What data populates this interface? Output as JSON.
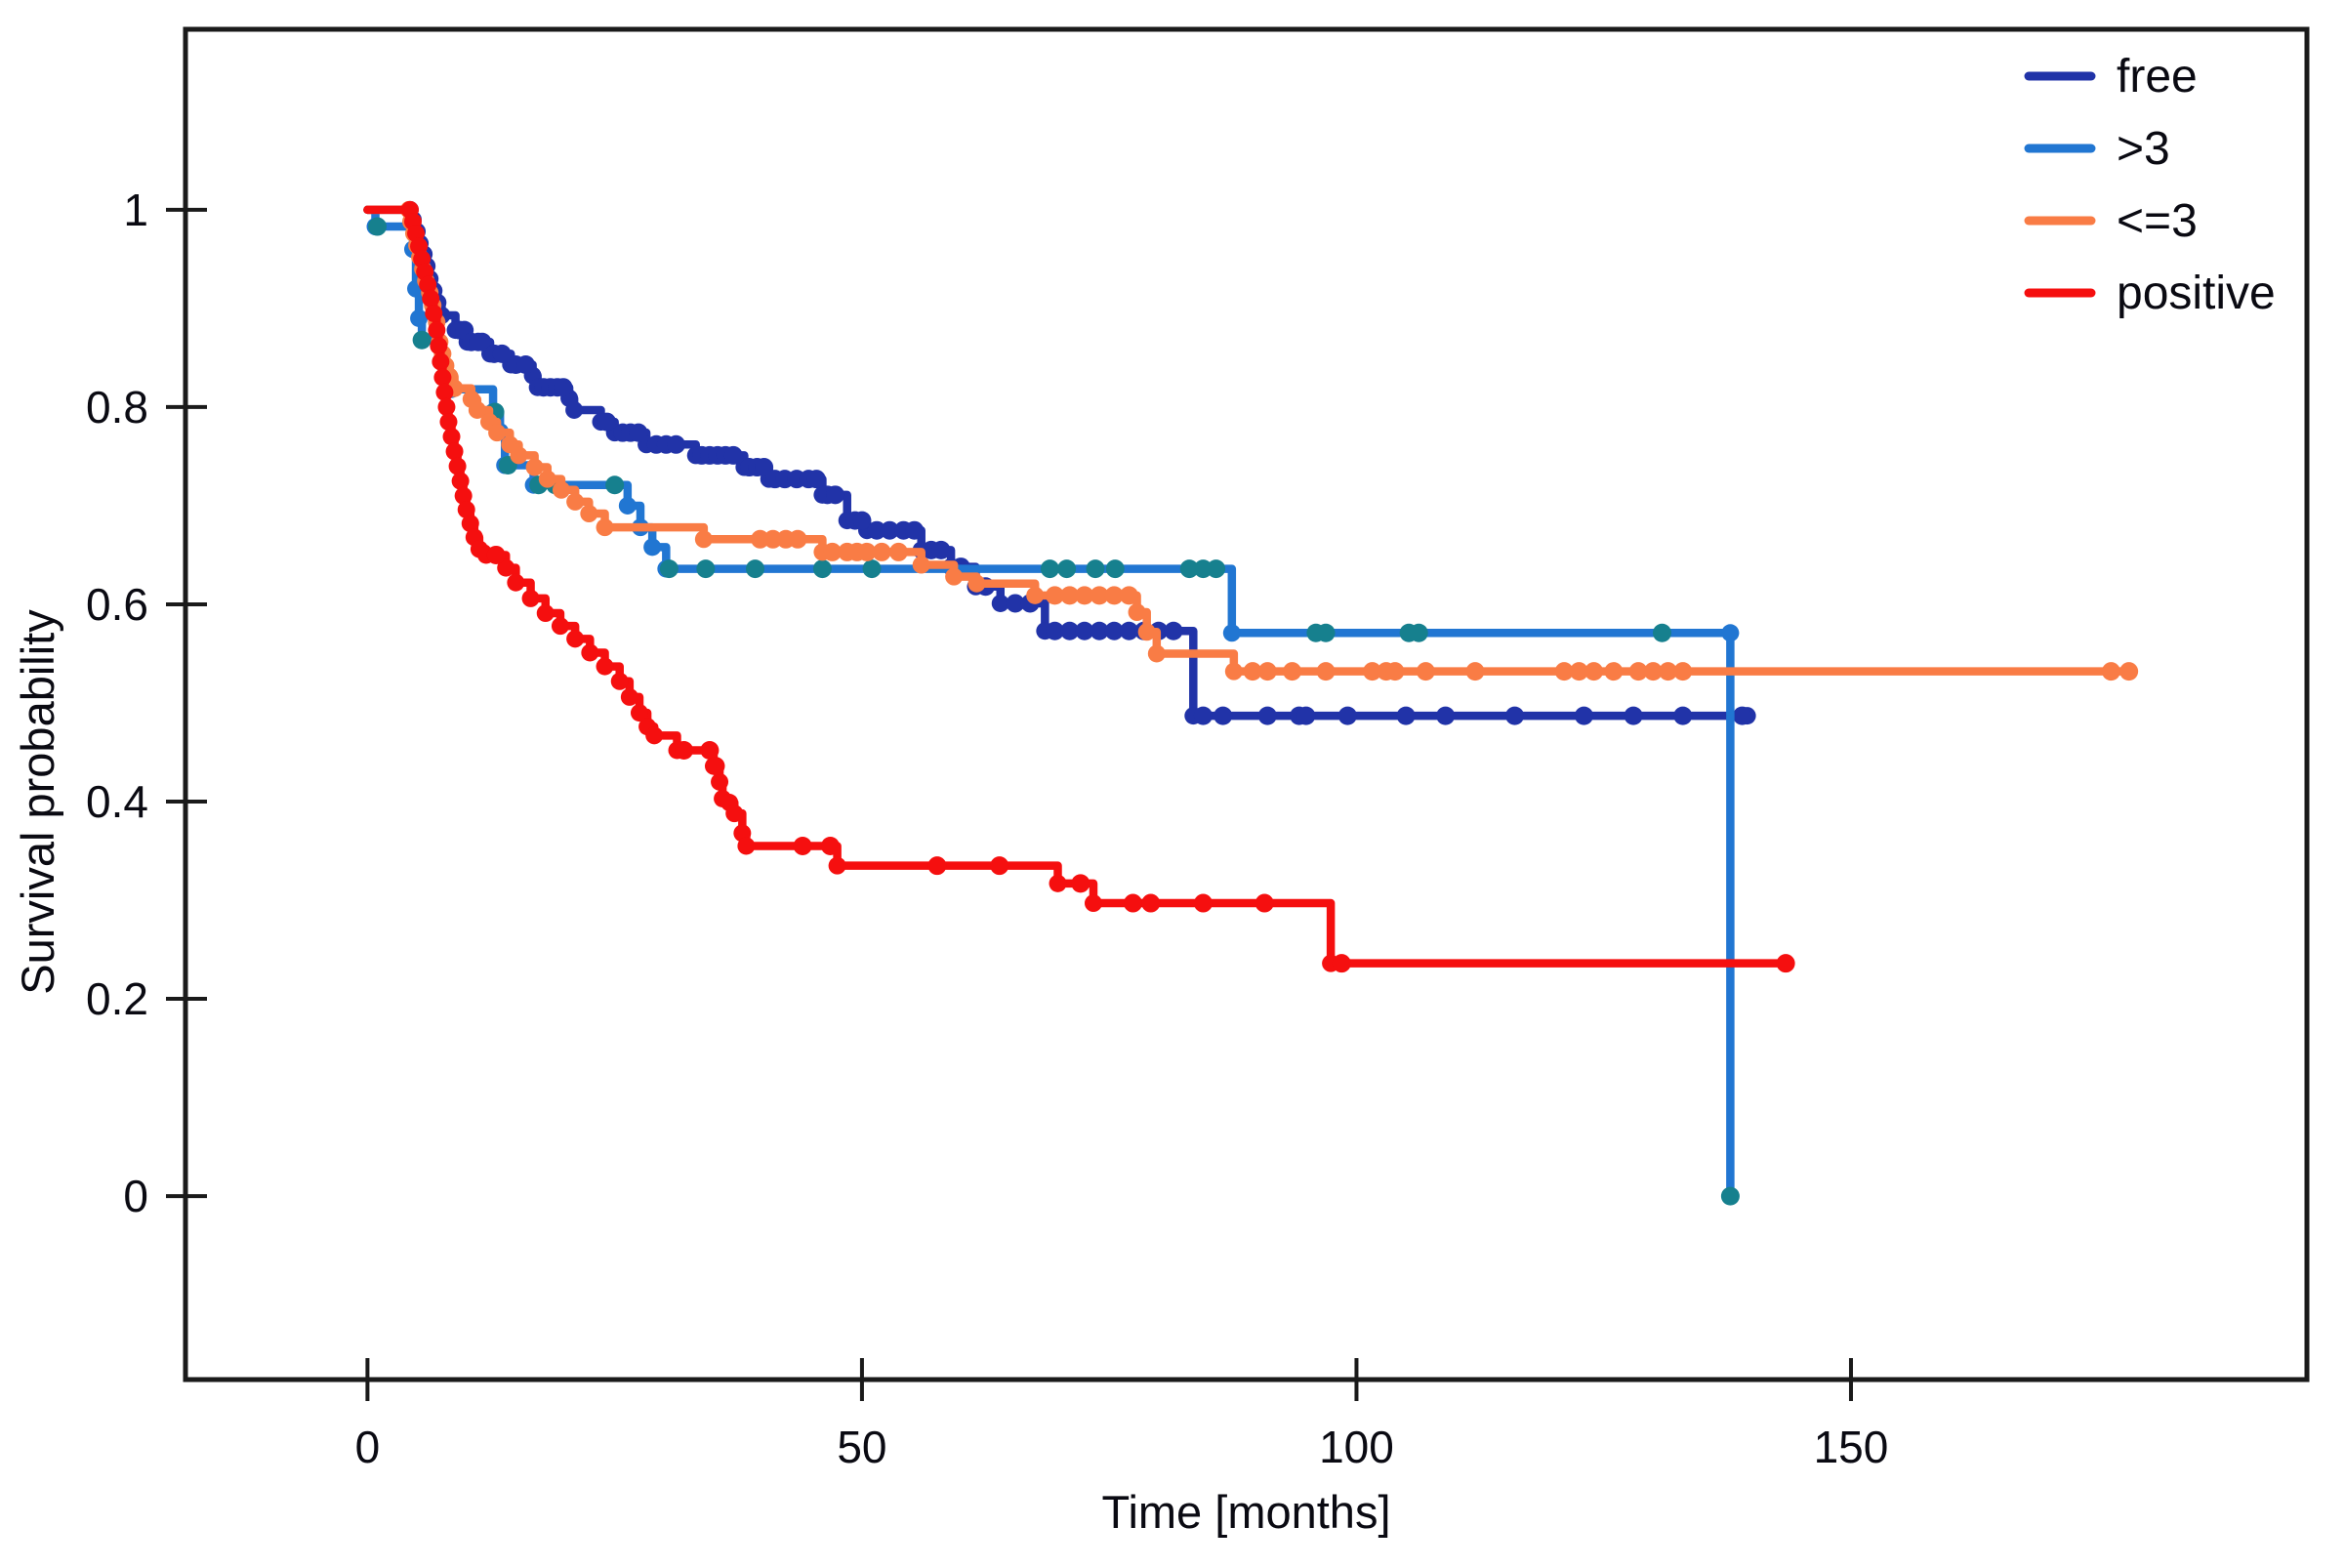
{
  "figure": {
    "kind": "kaplan-meier-survival-plot",
    "background": "#ffffff",
    "axis_color": "#1a1a1a",
    "text_color": "#0a0a12"
  },
  "chart_data": {
    "type": "line",
    "subtype": "step-survival",
    "title": "",
    "xlabel": "Time [months]",
    "ylabel": "Survival probability",
    "xlim": [
      -18.4,
      196.1
    ],
    "ylim": [
      -0.186,
      1.183
    ],
    "xticks": [
      0,
      50,
      100,
      150
    ],
    "xtick_labels": [
      "0",
      "50",
      "100",
      "150"
    ],
    "yticks": [
      1,
      0.8,
      0.6,
      0.4,
      0.2,
      0
    ],
    "ytick_labels": [
      "1",
      "0.8",
      "0.6",
      "0.4",
      "0.2",
      "0"
    ],
    "grid": false,
    "legend_position": "top-right",
    "series": [
      {
        "name": "free",
        "color": "#2133a8",
        "censor_color": "#2133a8",
        "steps": [
          [
            0,
            1
          ],
          [
            4.3,
            1
          ],
          [
            4.6,
            0.99
          ],
          [
            5,
            0.978
          ],
          [
            5.3,
            0.966
          ],
          [
            5.7,
            0.955
          ],
          [
            6,
            0.943
          ],
          [
            6.3,
            0.93
          ],
          [
            6.7,
            0.918
          ],
          [
            7.1,
            0.906
          ],
          [
            7.5,
            0.893
          ],
          [
            8.9,
            0.878
          ],
          [
            10.1,
            0.866
          ],
          [
            12.4,
            0.854
          ],
          [
            14.5,
            0.843
          ],
          [
            16.7,
            0.832
          ],
          [
            17.2,
            0.82
          ],
          [
            20.4,
            0.809
          ],
          [
            20.9,
            0.797
          ],
          [
            23.6,
            0.785
          ],
          [
            25,
            0.774
          ],
          [
            28.2,
            0.762
          ],
          [
            33.2,
            0.751
          ],
          [
            38.1,
            0.739
          ],
          [
            40.6,
            0.727
          ],
          [
            46,
            0.711
          ],
          [
            48.5,
            0.685
          ],
          [
            50.5,
            0.675
          ],
          [
            56,
            0.655
          ],
          [
            59,
            0.638
          ],
          [
            61.5,
            0.618
          ],
          [
            64,
            0.601
          ],
          [
            68.5,
            0.573
          ],
          [
            83.5,
            0.487
          ],
          [
            139.5,
            0.487
          ]
        ],
        "censors": [
          [
            9.3,
            0.878
          ],
          [
            9.8,
            0.878
          ],
          [
            10.5,
            0.866
          ],
          [
            11.2,
            0.866
          ],
          [
            11.6,
            0.866
          ],
          [
            12.8,
            0.854
          ],
          [
            13.6,
            0.854
          ],
          [
            15,
            0.843
          ],
          [
            16,
            0.843
          ],
          [
            17.8,
            0.82
          ],
          [
            18.5,
            0.82
          ],
          [
            19.2,
            0.82
          ],
          [
            19.8,
            0.82
          ],
          [
            24.2,
            0.785
          ],
          [
            25.8,
            0.774
          ],
          [
            26.6,
            0.774
          ],
          [
            27.4,
            0.774
          ],
          [
            29.2,
            0.762
          ],
          [
            30.2,
            0.762
          ],
          [
            31.2,
            0.762
          ],
          [
            33.8,
            0.751
          ],
          [
            34.6,
            0.751
          ],
          [
            35.4,
            0.751
          ],
          [
            36.2,
            0.751
          ],
          [
            37,
            0.751
          ],
          [
            38.6,
            0.739
          ],
          [
            39.4,
            0.739
          ],
          [
            40.1,
            0.739
          ],
          [
            41.2,
            0.727
          ],
          [
            42.2,
            0.727
          ],
          [
            43.4,
            0.727
          ],
          [
            44.6,
            0.727
          ],
          [
            45.4,
            0.727
          ],
          [
            46.5,
            0.711
          ],
          [
            47.3,
            0.711
          ],
          [
            49.3,
            0.685
          ],
          [
            50,
            0.685
          ],
          [
            51.5,
            0.675
          ],
          [
            52.8,
            0.675
          ],
          [
            54.2,
            0.675
          ],
          [
            55.3,
            0.675
          ],
          [
            57,
            0.655
          ],
          [
            58,
            0.655
          ],
          [
            60,
            0.638
          ],
          [
            62.5,
            0.618
          ],
          [
            65.5,
            0.601
          ],
          [
            67,
            0.601
          ],
          [
            69.5,
            0.573
          ],
          [
            71,
            0.573
          ],
          [
            72.5,
            0.573
          ],
          [
            74,
            0.573
          ],
          [
            75.5,
            0.573
          ],
          [
            77,
            0.573
          ],
          [
            78.5,
            0.573
          ],
          [
            80,
            0.573
          ],
          [
            81.5,
            0.573
          ],
          [
            84.5,
            0.487
          ],
          [
            86.5,
            0.487
          ],
          [
            91,
            0.487
          ],
          [
            94.2,
            0.487
          ],
          [
            94.9,
            0.487
          ],
          [
            99.1,
            0.487
          ],
          [
            105,
            0.487
          ],
          [
            109,
            0.487
          ],
          [
            116,
            0.487
          ],
          [
            123,
            0.487
          ],
          [
            128,
            0.487
          ],
          [
            133,
            0.487
          ],
          [
            139,
            0.487
          ]
        ]
      },
      {
        "name": ">3",
        "color": "#2176d2",
        "censor_color": "#16808e",
        "steps": [
          [
            0,
            1
          ],
          [
            0.8,
            0.983
          ],
          [
            4.6,
            0.96
          ],
          [
            4.9,
            0.92
          ],
          [
            5.2,
            0.89
          ],
          [
            5.5,
            0.868
          ],
          [
            7.6,
            0.845
          ],
          [
            8.1,
            0.83
          ],
          [
            8.5,
            0.818
          ],
          [
            12.7,
            0.795
          ],
          [
            13.4,
            0.775
          ],
          [
            13.9,
            0.741
          ],
          [
            16.8,
            0.721
          ],
          [
            26.3,
            0.7
          ],
          [
            27.6,
            0.678
          ],
          [
            28.8,
            0.658
          ],
          [
            30.2,
            0.636
          ],
          [
            87.4,
            0.571
          ],
          [
            137.8,
            0.571
          ],
          [
            137.8,
            0
          ]
        ],
        "censors": [
          [
            1,
            0.983
          ],
          [
            5.5,
            0.868
          ],
          [
            12.9,
            0.795
          ],
          [
            14.2,
            0.741
          ],
          [
            17.3,
            0.721
          ],
          [
            19,
            0.721
          ],
          [
            25,
            0.721
          ],
          [
            30.5,
            0.636
          ],
          [
            34.2,
            0.636
          ],
          [
            39.2,
            0.636
          ],
          [
            46,
            0.636
          ],
          [
            51,
            0.636
          ],
          [
            69,
            0.636
          ],
          [
            70.7,
            0.636
          ],
          [
            73.6,
            0.636
          ],
          [
            75.6,
            0.636
          ],
          [
            83.1,
            0.636
          ],
          [
            84.5,
            0.636
          ],
          [
            85.8,
            0.636
          ],
          [
            95.9,
            0.571
          ],
          [
            96.9,
            0.571
          ],
          [
            105.3,
            0.571
          ],
          [
            106.3,
            0.571
          ],
          [
            130.9,
            0.571
          ],
          [
            137.8,
            0
          ]
        ]
      },
      {
        "name": "<=3",
        "color": "#f97c45",
        "censor_color": "#f97c45",
        "steps": [
          [
            0,
            1
          ],
          [
            4.2,
            1
          ],
          [
            4.4,
            0.988
          ],
          [
            4.7,
            0.976
          ],
          [
            5,
            0.964
          ],
          [
            5.3,
            0.952
          ],
          [
            5.6,
            0.94
          ],
          [
            5.9,
            0.928
          ],
          [
            6.3,
            0.916
          ],
          [
            6.6,
            0.903
          ],
          [
            7,
            0.886
          ],
          [
            7.3,
            0.866
          ],
          [
            7.6,
            0.854
          ],
          [
            7.9,
            0.842
          ],
          [
            8.3,
            0.831
          ],
          [
            8.8,
            0.819
          ],
          [
            10.5,
            0.808
          ],
          [
            11.1,
            0.797
          ],
          [
            12.3,
            0.785
          ],
          [
            13.1,
            0.774
          ],
          [
            14.4,
            0.762
          ],
          [
            15.3,
            0.751
          ],
          [
            16.9,
            0.739
          ],
          [
            18.2,
            0.727
          ],
          [
            19.6,
            0.716
          ],
          [
            21,
            0.704
          ],
          [
            22.4,
            0.692
          ],
          [
            24,
            0.678
          ],
          [
            34,
            0.666
          ],
          [
            46,
            0.653
          ],
          [
            56,
            0.64
          ],
          [
            59.3,
            0.628
          ],
          [
            61.6,
            0.621
          ],
          [
            67.5,
            0.609
          ],
          [
            77.8,
            0.592
          ],
          [
            78.8,
            0.572
          ],
          [
            79.8,
            0.55
          ],
          [
            87.6,
            0.532
          ],
          [
            178.1,
            0.532
          ]
        ],
        "censors": [
          [
            39.7,
            0.666
          ],
          [
            41,
            0.666
          ],
          [
            42.3,
            0.666
          ],
          [
            43.5,
            0.666
          ],
          [
            47,
            0.653
          ],
          [
            48.5,
            0.653
          ],
          [
            49.5,
            0.653
          ],
          [
            50.5,
            0.653
          ],
          [
            52,
            0.653
          ],
          [
            53.7,
            0.653
          ],
          [
            69.5,
            0.609
          ],
          [
            71,
            0.609
          ],
          [
            72.5,
            0.609
          ],
          [
            74,
            0.609
          ],
          [
            75.5,
            0.609
          ],
          [
            77,
            0.609
          ],
          [
            89.5,
            0.532
          ],
          [
            91,
            0.532
          ],
          [
            93.5,
            0.532
          ],
          [
            96.9,
            0.532
          ],
          [
            101.6,
            0.532
          ],
          [
            103,
            0.532
          ],
          [
            103.9,
            0.532
          ],
          [
            107,
            0.532
          ],
          [
            112,
            0.532
          ],
          [
            121,
            0.532
          ],
          [
            122.5,
            0.532
          ],
          [
            124,
            0.532
          ],
          [
            126,
            0.532
          ],
          [
            128.5,
            0.532
          ],
          [
            130,
            0.532
          ],
          [
            131.5,
            0.532
          ],
          [
            133,
            0.532
          ],
          [
            176.3,
            0.532
          ],
          [
            178.1,
            0.532
          ]
        ]
      },
      {
        "name": "positive",
        "color": "#f50f0f",
        "censor_color": "#f50f0f",
        "steps": [
          [
            0,
            1
          ],
          [
            4.3,
            1
          ],
          [
            4.6,
            0.988
          ],
          [
            4.9,
            0.976
          ],
          [
            5.2,
            0.963
          ],
          [
            5.5,
            0.95
          ],
          [
            5.8,
            0.937
          ],
          [
            6.1,
            0.924
          ],
          [
            6.4,
            0.91
          ],
          [
            6.7,
            0.895
          ],
          [
            7,
            0.878
          ],
          [
            7.2,
            0.862
          ],
          [
            7.4,
            0.846
          ],
          [
            7.6,
            0.83
          ],
          [
            7.8,
            0.815
          ],
          [
            8,
            0.8
          ],
          [
            8.2,
            0.785
          ],
          [
            8.5,
            0.77
          ],
          [
            8.8,
            0.755
          ],
          [
            9.1,
            0.74
          ],
          [
            9.4,
            0.725
          ],
          [
            9.7,
            0.71
          ],
          [
            10,
            0.696
          ],
          [
            10.4,
            0.682
          ],
          [
            10.8,
            0.668
          ],
          [
            11.3,
            0.656
          ],
          [
            12,
            0.65
          ],
          [
            14,
            0.637
          ],
          [
            15,
            0.622
          ],
          [
            16.5,
            0.606
          ],
          [
            18,
            0.591
          ],
          [
            19.5,
            0.578
          ],
          [
            21,
            0.565
          ],
          [
            22.5,
            0.551
          ],
          [
            24,
            0.537
          ],
          [
            25.5,
            0.522
          ],
          [
            26.5,
            0.506
          ],
          [
            27.5,
            0.49
          ],
          [
            28.3,
            0.476
          ],
          [
            29,
            0.467
          ],
          [
            31.3,
            0.452
          ],
          [
            35,
            0.436
          ],
          [
            35.6,
            0.42
          ],
          [
            35.9,
            0.403
          ],
          [
            36.6,
            0.399
          ],
          [
            37.1,
            0.388
          ],
          [
            37.9,
            0.368
          ],
          [
            38.3,
            0.355
          ],
          [
            47.5,
            0.335
          ],
          [
            69.8,
            0.317
          ],
          [
            73.4,
            0.297
          ],
          [
            97.4,
            0.236
          ],
          [
            143.4,
            0.236
          ]
        ],
        "censors": [
          [
            13,
            0.65
          ],
          [
            32,
            0.452
          ],
          [
            34.6,
            0.452
          ],
          [
            35.2,
            0.436
          ],
          [
            44,
            0.355
          ],
          [
            46.8,
            0.355
          ],
          [
            57.6,
            0.335
          ],
          [
            63.9,
            0.335
          ],
          [
            72.1,
            0.317
          ],
          [
            77.4,
            0.297
          ],
          [
            79.2,
            0.297
          ],
          [
            84.5,
            0.297
          ],
          [
            90.7,
            0.297
          ],
          [
            98.5,
            0.236
          ],
          [
            143.4,
            0.236
          ]
        ]
      }
    ]
  },
  "legend": {
    "items": [
      {
        "label": "free",
        "color": "#2133a8"
      },
      {
        "label": ">3",
        "color": "#2176d2"
      },
      {
        "label": "<=3",
        "color": "#f97c45"
      },
      {
        "label": "positive",
        "color": "#f50f0f"
      }
    ]
  }
}
